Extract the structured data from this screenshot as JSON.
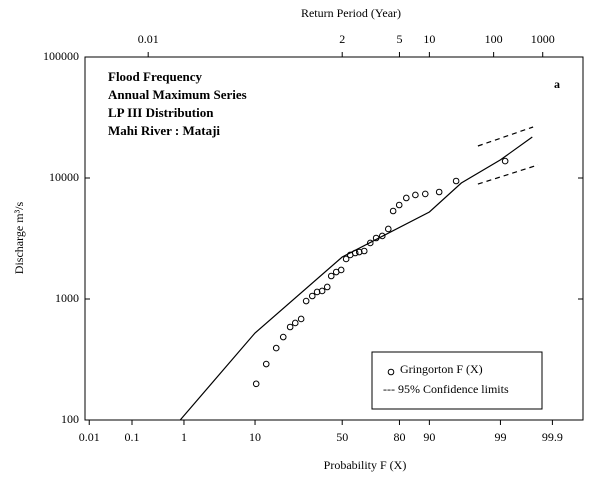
{
  "chart_data": {
    "type": "probability-plot",
    "xscale": "normal-probability",
    "yscale": "log",
    "title": "Return Period (Year)",
    "xlabel": "Probability  F (X)",
    "ylabel": "Discharge m³/s",
    "annotations": [
      "Flood Frequency",
      "Annual Maximum Series",
      "LP III Distribution",
      "Mahi River : Mataji"
    ],
    "panel_label": "a",
    "xlim": [
      0.0078,
      99.98
    ],
    "ylim": [
      100,
      100000
    ],
    "xticks": [
      0.01,
      0.1,
      1,
      10,
      50,
      80,
      90,
      99,
      99.9
    ],
    "x2ticks": [
      {
        "value": 0.217,
        "label": "0.01"
      },
      {
        "value": 50,
        "label": "2"
      },
      {
        "value": 80,
        "label": "5"
      },
      {
        "value": 90,
        "label": "10"
      },
      {
        "value": 98.7,
        "label": "100"
      },
      {
        "value": 99.84,
        "label": "1000"
      }
    ],
    "yticks": [
      100,
      1000,
      10000,
      100000
    ],
    "series": [
      {
        "name": "Gringorton  F (X)",
        "color": "#000000",
        "x": [
          10.3,
          13.2,
          16.6,
          19.3,
          22.2,
          24.5,
          27.3,
          29.8,
          33.0,
          35.6,
          38.4,
          41.3,
          43.6,
          46.5,
          49.4,
          52.3,
          54.7,
          57.6,
          59.9,
          62.7,
          66.0,
          69.1,
          72.2,
          75.1,
          77.3,
          79.9,
          82.7,
          85.9,
          88.9,
          92.3,
          95.3,
          99.17
        ],
        "values": [
          199,
          290,
          393,
          485,
          587,
          634,
          684,
          962,
          1059,
          1143,
          1165,
          1257,
          1549,
          1671,
          1738,
          2143,
          2312,
          2400,
          2445,
          2493,
          2904,
          3193,
          3318,
          3791,
          5337,
          5983,
          6837,
          7244,
          7384,
          7663,
          9446,
          13800
        ]
      }
    ],
    "curve": {
      "color": "#000000",
      "x": [
        0.86,
        10,
        50,
        90,
        96,
        99,
        99.74
      ],
      "values": [
        100,
        524,
        2224,
        5236,
        9100,
        14100,
        21800
      ]
    },
    "confidence": {
      "name": "--- 95% Confidence limits",
      "color": "#000000",
      "upper": {
        "x": [
          97.7,
          99.75
        ],
        "values": [
          18400,
          26400
        ]
      },
      "lower": {
        "x": [
          97.7,
          99.8
        ],
        "values": [
          8900,
          12800
        ]
      }
    }
  }
}
